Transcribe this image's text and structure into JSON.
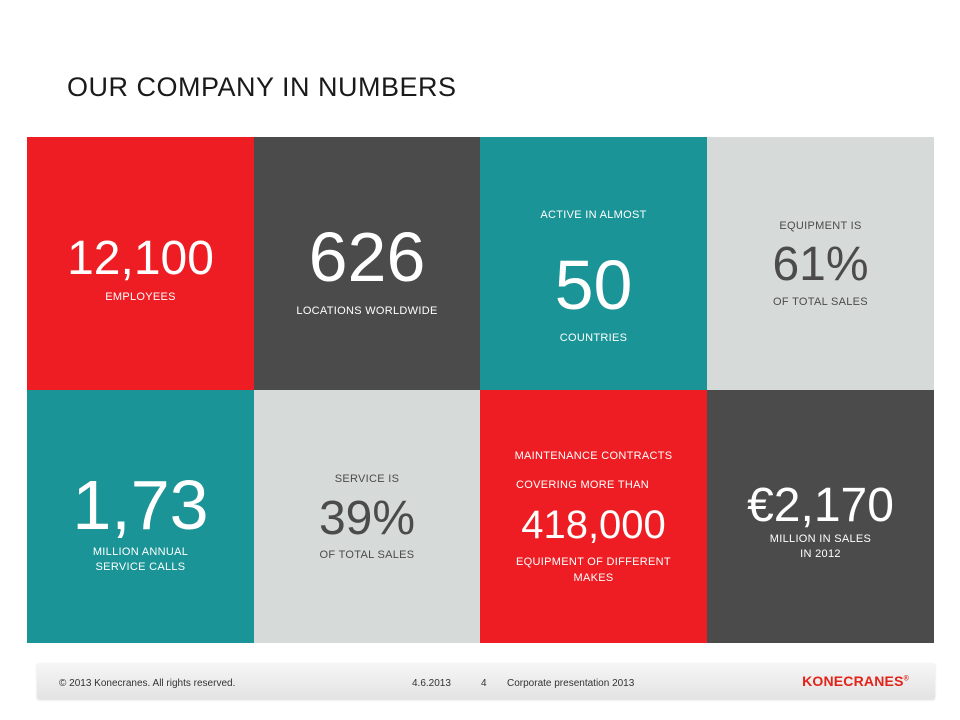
{
  "title": "OUR COMPANY IN NUMBERS",
  "tiles": {
    "employees": {
      "value": "12,100",
      "label": "EMPLOYEES"
    },
    "locations": {
      "value": "626",
      "label": "LOCATIONS  WORLDWIDE"
    },
    "countries": {
      "pre": "ACTIVE  IN ALMOST",
      "value": "50",
      "label": "COUNTRIES"
    },
    "equipment": {
      "pre": "EQUIPMENT  IS",
      "value": "61%",
      "label": "OF TOTAL  SALES"
    },
    "service_calls": {
      "value": "1,73",
      "label_1": "MILLION  ANNUAL",
      "label_2": "SERVICE CALLS"
    },
    "service": {
      "pre": "SERVICE IS",
      "value": "39%",
      "label": "OF TOTAL  SALES"
    },
    "maintenance": {
      "pre_1": "MAINTENANCE  CONTRACTS",
      "pre_2": "COVERING  MORE THAN",
      "value": "418,000",
      "label_1": "EQUIPMENT  OF DIFFERENT",
      "label_2": "MAKES"
    },
    "sales": {
      "value": "€2,170",
      "label_1": "MILLION  IN SALES",
      "label_2": "IN 2012"
    }
  },
  "colors": {
    "red": "#ee1d23",
    "dark": "#4b4b4b",
    "teal": "#1a9496",
    "light": "#d6dbd9"
  },
  "footer": {
    "copyright": "© 2013 Konecranes.  All rights reserved.",
    "date": "4.6.2013",
    "page": "4",
    "presentation": "Corporate presentation 2013",
    "logo": "KONECRANES",
    "logo_mark": "®"
  }
}
